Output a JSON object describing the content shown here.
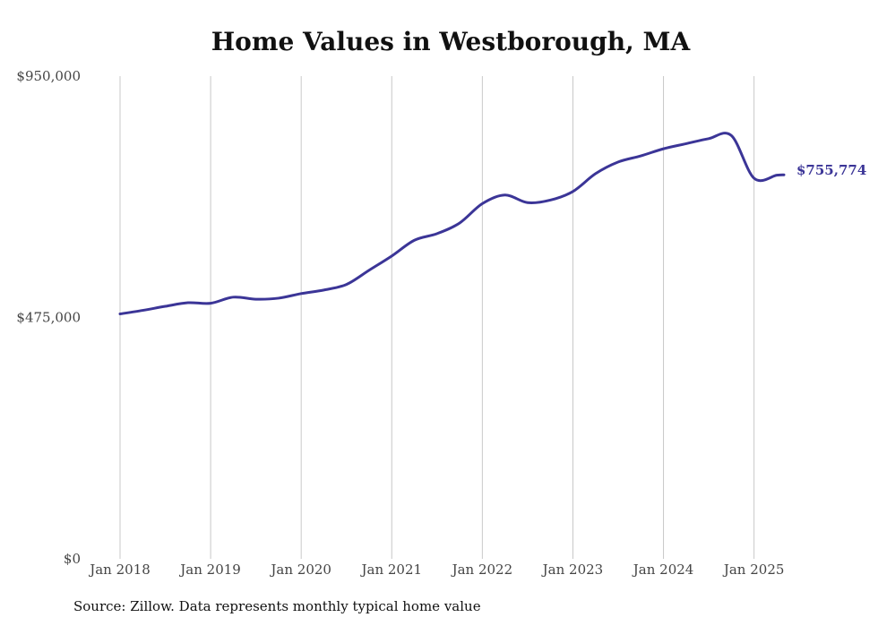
{
  "chart_data": {
    "type": "line",
    "title": "Home Values in Westborough, MA",
    "xlabel": "",
    "ylabel": "",
    "ylim": [
      0,
      950000
    ],
    "y_ticks": [
      {
        "value": 0,
        "label": "$0"
      },
      {
        "value": 475000,
        "label": "$475,000"
      },
      {
        "value": 950000,
        "label": "$950,000"
      }
    ],
    "x_ticks": [
      {
        "value": 2018.0,
        "label": "Jan 2018"
      },
      {
        "value": 2019.0,
        "label": "Jan 2019"
      },
      {
        "value": 2020.0,
        "label": "Jan 2020"
      },
      {
        "value": 2021.0,
        "label": "Jan 2021"
      },
      {
        "value": 2022.0,
        "label": "Jan 2022"
      },
      {
        "value": 2023.0,
        "label": "Jan 2023"
      },
      {
        "value": 2024.0,
        "label": "Jan 2024"
      },
      {
        "value": 2025.0,
        "label": "Jan 2025"
      }
    ],
    "grid": "vertical",
    "color": "#3b3597",
    "end_label": "$755,774",
    "series": [
      {
        "x": [
          2018.0,
          2018.25,
          2018.5,
          2018.75,
          2019.0,
          2019.25,
          2019.5,
          2019.75,
          2020.0,
          2020.25,
          2020.5,
          2020.75,
          2021.0,
          2021.25,
          2021.5,
          2021.75,
          2022.0,
          2022.25,
          2022.5,
          2022.75,
          2023.0,
          2023.25,
          2023.5,
          2023.75,
          2024.0,
          2024.25,
          2024.5,
          2024.75,
          2025.0,
          2025.25,
          2025.33
        ],
        "y": [
          482000,
          489000,
          497000,
          504000,
          503000,
          515000,
          511000,
          513000,
          522000,
          529000,
          540000,
          568000,
          596000,
          627000,
          640000,
          661000,
          699000,
          716000,
          701000,
          706000,
          723000,
          758000,
          781000,
          793000,
          807000,
          817000,
          827000,
          833000,
          749000,
          755000,
          755774
        ]
      }
    ]
  },
  "source_note": "Source: Zillow. Data represents monthly typical home value"
}
